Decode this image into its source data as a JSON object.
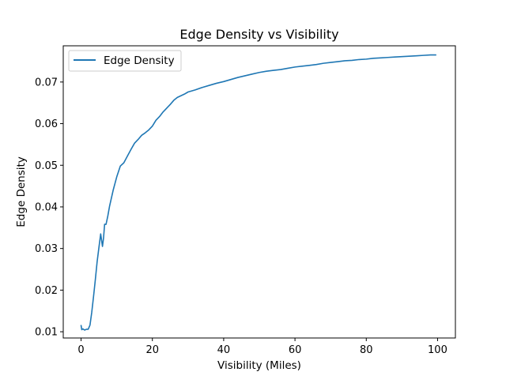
{
  "chart_data": {
    "type": "line",
    "title": "Edge Density vs Visibility",
    "xlabel": "Visibility (Miles)",
    "ylabel": "Edge Density",
    "xlim": [
      -5,
      105
    ],
    "ylim": [
      0.0085,
      0.0787
    ],
    "xticks": [
      0,
      20,
      40,
      60,
      80,
      100
    ],
    "yticks": [
      0.01,
      0.02,
      0.03,
      0.04,
      0.05,
      0.06,
      0.07
    ],
    "xtick_labels": [
      "0",
      "20",
      "40",
      "60",
      "80",
      "100"
    ],
    "ytick_labels": [
      "0.01",
      "0.02",
      "0.03",
      "0.04",
      "0.05",
      "0.06",
      "0.07"
    ],
    "grid": false,
    "legend_position": "top-left",
    "series": [
      {
        "name": "Edge Density",
        "color": "#1f77b4",
        "x": [
          0,
          0.2,
          0.5,
          1,
          1.5,
          2,
          2.5,
          3,
          3.5,
          4,
          4.5,
          5,
          5.5,
          6,
          6.3,
          6.6,
          7,
          7.5,
          8,
          9,
          10,
          11,
          12,
          13,
          14,
          15,
          16,
          17,
          18,
          19,
          20,
          21,
          22,
          23,
          24,
          25,
          26,
          27,
          28,
          29,
          30,
          32,
          34,
          36,
          38,
          40,
          42,
          44,
          46,
          48,
          50,
          52,
          54,
          56,
          58,
          60,
          62,
          64,
          66,
          68,
          70,
          72,
          74,
          76,
          78,
          80,
          82,
          84,
          86,
          88,
          90,
          92,
          94,
          96,
          98,
          99.5
        ],
        "y": [
          0.0115,
          0.0105,
          0.0107,
          0.0104,
          0.0106,
          0.0106,
          0.0116,
          0.0147,
          0.0185,
          0.0225,
          0.0268,
          0.0302,
          0.0335,
          0.0305,
          0.0325,
          0.0358,
          0.0358,
          0.0378,
          0.0402,
          0.044,
          0.0472,
          0.0498,
          0.0506,
          0.0522,
          0.0538,
          0.0553,
          0.0562,
          0.0572,
          0.0578,
          0.0585,
          0.0594,
          0.0608,
          0.0617,
          0.0628,
          0.0637,
          0.0646,
          0.0656,
          0.0663,
          0.0667,
          0.0671,
          0.0676,
          0.0681,
          0.0687,
          0.0692,
          0.0697,
          0.0701,
          0.0706,
          0.0711,
          0.0715,
          0.0719,
          0.0723,
          0.0726,
          0.0728,
          0.073,
          0.0733,
          0.0736,
          0.0738,
          0.074,
          0.0742,
          0.0745,
          0.0747,
          0.0749,
          0.0751,
          0.0752,
          0.0754,
          0.0755,
          0.0757,
          0.0758,
          0.0759,
          0.076,
          0.0761,
          0.0762,
          0.0763,
          0.0764,
          0.0765,
          0.0765
        ]
      }
    ]
  }
}
